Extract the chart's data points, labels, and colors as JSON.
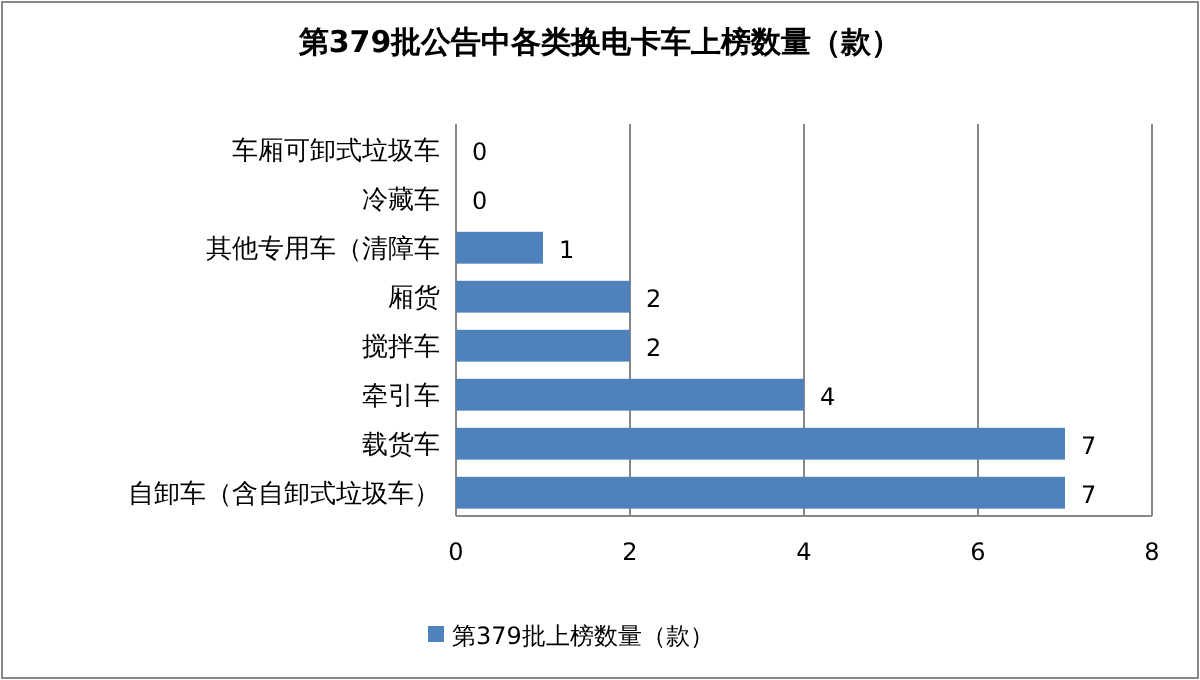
{
  "chart_data": {
    "type": "bar",
    "orientation": "horizontal",
    "title": "第379批公告中各类换电卡车上榜数量（款）",
    "categories": [
      "车厢可卸式垃圾车",
      "冷藏车",
      "其他专用车（清障车",
      "厢货",
      "搅拌车",
      "牵引车",
      "载货车",
      "自卸车（含自卸式垃圾车）"
    ],
    "series": [
      {
        "name": "第379批上榜数量（款）",
        "color": "#4f81bd",
        "values": [
          0,
          0,
          1,
          2,
          2,
          4,
          7,
          7
        ]
      }
    ],
    "xlim": [
      0,
      8
    ],
    "xticks": [
      0,
      2,
      4,
      6,
      8
    ],
    "grid": "x",
    "legend": "bottom",
    "data_labels": true
  }
}
